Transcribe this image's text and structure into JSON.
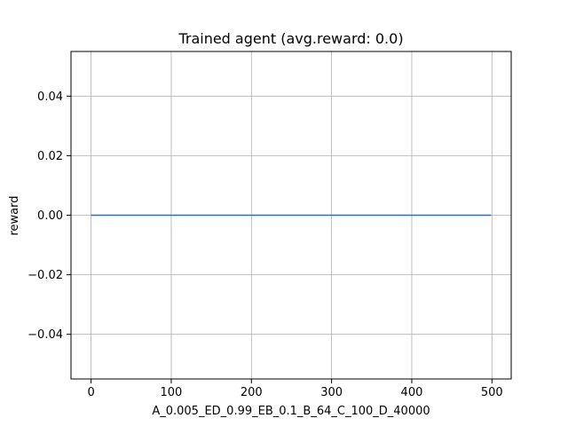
{
  "chart_data": {
    "type": "line",
    "title": "Trained agent (avg.reward: 0.0)",
    "xlabel": "A_0.005_ED_0.99_EB_0.1_B_64_C_100_D_40000",
    "ylabel": "reward",
    "xlim": [
      -25,
      524
    ],
    "ylim": [
      -0.055,
      0.055
    ],
    "xticks": [
      0,
      100,
      200,
      300,
      400,
      500
    ],
    "xtick_labels": [
      "0",
      "100",
      "200",
      "300",
      "400",
      "500"
    ],
    "yticks": [
      -0.04,
      -0.02,
      0.0,
      0.02,
      0.04
    ],
    "ytick_labels": [
      "−0.04",
      "−0.02",
      "0.00",
      "0.02",
      "0.04"
    ],
    "grid": true,
    "series": [
      {
        "x": [
          0,
          499
        ],
        "y": [
          0.0,
          0.0
        ],
        "color": "#1f77b4"
      }
    ]
  }
}
